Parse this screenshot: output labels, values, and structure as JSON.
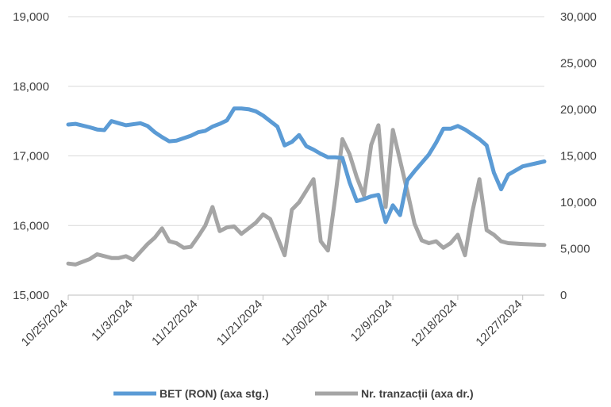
{
  "chart_data": {
    "type": "line",
    "title": "",
    "x_ticks": [
      "10/25/2024",
      "11/3/2024",
      "11/12/2024",
      "11/21/2024",
      "11/30/2024",
      "12/9/2024",
      "12/18/2024",
      "12/27/2024"
    ],
    "y_left": {
      "min": 15000,
      "max": 19000,
      "ticks": [
        "15,000",
        "16,000",
        "17,000",
        "18,000",
        "19,000"
      ]
    },
    "y_right": {
      "min": 0,
      "max": 30000,
      "ticks": [
        "0",
        "5,000",
        "10,000",
        "15,000",
        "20,000",
        "25,000",
        "30,000"
      ]
    },
    "grid": "horizontal",
    "legend_position": "bottom",
    "series": [
      {
        "name": "BET (RON) (axa stg.)",
        "axis": "left",
        "color": "#5B9BD5",
        "points": [
          [
            "2024-10-25",
            17450
          ],
          [
            "2024-10-26",
            17460
          ],
          [
            "2024-10-28",
            17410
          ],
          [
            "2024-10-29",
            17380
          ],
          [
            "2024-10-30",
            17370
          ],
          [
            "2024-10-31",
            17500
          ],
          [
            "2024-11-01",
            17470
          ],
          [
            "2024-11-02",
            17440
          ],
          [
            "2024-11-04",
            17470
          ],
          [
            "2024-11-05",
            17430
          ],
          [
            "2024-11-06",
            17340
          ],
          [
            "2024-11-07",
            17270
          ],
          [
            "2024-11-08",
            17210
          ],
          [
            "2024-11-09",
            17220
          ],
          [
            "2024-11-11",
            17290
          ],
          [
            "2024-11-12",
            17340
          ],
          [
            "2024-11-13",
            17360
          ],
          [
            "2024-11-14",
            17420
          ],
          [
            "2024-11-15",
            17460
          ],
          [
            "2024-11-16",
            17510
          ],
          [
            "2024-11-17",
            17680
          ],
          [
            "2024-11-18",
            17680
          ],
          [
            "2024-11-19",
            17670
          ],
          [
            "2024-11-20",
            17640
          ],
          [
            "2024-11-21",
            17580
          ],
          [
            "2024-11-22",
            17500
          ],
          [
            "2024-11-23",
            17420
          ],
          [
            "2024-11-24",
            17150
          ],
          [
            "2024-11-25",
            17200
          ],
          [
            "2024-11-26",
            17300
          ],
          [
            "2024-11-27",
            17140
          ],
          [
            "2024-11-28",
            17090
          ],
          [
            "2024-11-29",
            17030
          ],
          [
            "2024-11-30",
            16980
          ],
          [
            "2024-12-01",
            16980
          ],
          [
            "2024-12-02",
            16970
          ],
          [
            "2024-12-03",
            16620
          ],
          [
            "2024-12-04",
            16350
          ],
          [
            "2024-12-05",
            16380
          ],
          [
            "2024-12-06",
            16420
          ],
          [
            "2024-12-07",
            16440
          ],
          [
            "2024-12-08",
            16050
          ],
          [
            "2024-12-09",
            16290
          ],
          [
            "2024-12-10",
            16150
          ],
          [
            "2024-12-11",
            16650
          ],
          [
            "2024-12-12",
            16780
          ],
          [
            "2024-12-13",
            16900
          ],
          [
            "2024-12-14",
            17020
          ],
          [
            "2024-12-15",
            17190
          ],
          [
            "2024-12-16",
            17390
          ],
          [
            "2024-12-17",
            17390
          ],
          [
            "2024-12-18",
            17430
          ],
          [
            "2024-12-19",
            17380
          ],
          [
            "2024-12-20",
            17310
          ],
          [
            "2024-12-21",
            17240
          ],
          [
            "2024-12-22",
            17150
          ],
          [
            "2024-12-23",
            16760
          ],
          [
            "2024-12-24",
            16520
          ],
          [
            "2024-12-25",
            16730
          ],
          [
            "2024-12-27",
            16850
          ],
          [
            "2024-12-30",
            16920
          ]
        ]
      },
      {
        "name": "Nr. tranzacții (axa dr.)",
        "axis": "right",
        "color": "#A5A5A5",
        "points": [
          [
            "2024-10-25",
            3400
          ],
          [
            "2024-10-26",
            3300
          ],
          [
            "2024-10-28",
            3900
          ],
          [
            "2024-10-29",
            4400
          ],
          [
            "2024-10-31",
            4000
          ],
          [
            "2024-11-01",
            4000
          ],
          [
            "2024-11-02",
            4200
          ],
          [
            "2024-11-03",
            3800
          ],
          [
            "2024-11-05",
            5500
          ],
          [
            "2024-11-06",
            6200
          ],
          [
            "2024-11-07",
            7200
          ],
          [
            "2024-11-08",
            5800
          ],
          [
            "2024-11-09",
            5600
          ],
          [
            "2024-11-10",
            5100
          ],
          [
            "2024-11-11",
            5200
          ],
          [
            "2024-11-12",
            6300
          ],
          [
            "2024-11-13",
            7500
          ],
          [
            "2024-11-14",
            9500
          ],
          [
            "2024-11-15",
            6900
          ],
          [
            "2024-11-16",
            7300
          ],
          [
            "2024-11-17",
            7400
          ],
          [
            "2024-11-18",
            6600
          ],
          [
            "2024-11-19",
            7200
          ],
          [
            "2024-11-20",
            7800
          ],
          [
            "2024-11-21",
            8700
          ],
          [
            "2024-11-22",
            8200
          ],
          [
            "2024-11-24",
            4300
          ],
          [
            "2024-11-25",
            9200
          ],
          [
            "2024-11-26",
            10000
          ],
          [
            "2024-11-28",
            12500
          ],
          [
            "2024-11-29",
            5800
          ],
          [
            "2024-11-30",
            4800
          ],
          [
            "2024-12-01",
            10500
          ],
          [
            "2024-12-02",
            16800
          ],
          [
            "2024-12-03",
            15200
          ],
          [
            "2024-12-04",
            12700
          ],
          [
            "2024-12-05",
            10700
          ],
          [
            "2024-12-06",
            16200
          ],
          [
            "2024-12-07",
            18300
          ],
          [
            "2024-12-08",
            9500
          ],
          [
            "2024-12-09",
            17800
          ],
          [
            "2024-12-10",
            14500
          ],
          [
            "2024-12-11",
            11200
          ],
          [
            "2024-12-12",
            7700
          ],
          [
            "2024-12-13",
            5900
          ],
          [
            "2024-12-14",
            5600
          ],
          [
            "2024-12-15",
            5800
          ],
          [
            "2024-12-16",
            5100
          ],
          [
            "2024-12-17",
            5600
          ],
          [
            "2024-12-18",
            6500
          ],
          [
            "2024-12-19",
            4300
          ],
          [
            "2024-12-20",
            8900
          ],
          [
            "2024-12-21",
            12500
          ],
          [
            "2024-12-22",
            7000
          ],
          [
            "2024-12-23",
            6500
          ],
          [
            "2024-12-24",
            5800
          ],
          [
            "2024-12-25",
            5600
          ],
          [
            "2024-12-27",
            5500
          ],
          [
            "2024-12-30",
            5400
          ]
        ]
      }
    ]
  }
}
